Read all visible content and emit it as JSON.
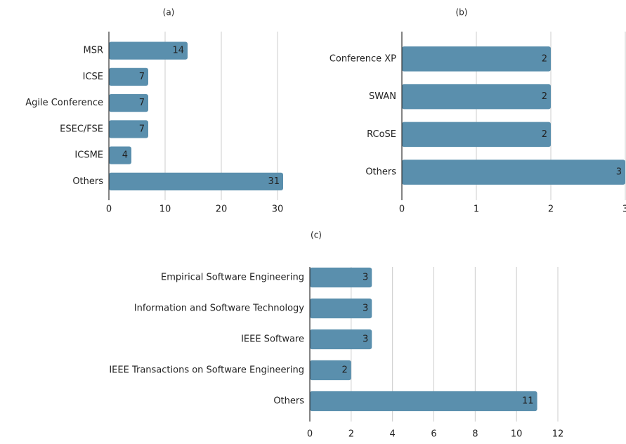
{
  "chart_data": [
    {
      "type": "barh",
      "title": "(a)",
      "categories": [
        "MSR",
        "ICSE",
        "Agile Conference",
        "ESEC/FSE",
        "ICSME",
        "Others"
      ],
      "values": [
        14,
        7,
        7,
        7,
        4,
        31
      ],
      "color": "#5a8fad",
      "xlim": [
        0,
        31
      ],
      "xticks": [
        0,
        10,
        20,
        30
      ],
      "grid": true
    },
    {
      "type": "barh",
      "title": "(b)",
      "categories": [
        "Conference XP",
        "SWAN",
        "RCoSE",
        "Others"
      ],
      "values": [
        2,
        2,
        2,
        3
      ],
      "color": "#5a8fad",
      "xlim": [
        0,
        3
      ],
      "xticks": [
        0,
        1,
        2,
        3
      ],
      "grid": true
    },
    {
      "type": "barh",
      "title": "(c)",
      "categories": [
        "Empirical Software Engineering",
        "Information and Software Technology",
        "IEEE Software",
        "IEEE Transactions on Software Engineering",
        "Others"
      ],
      "values": [
        3,
        3,
        3,
        2,
        11
      ],
      "color": "#5a8fad",
      "xlim": [
        0,
        12
      ],
      "xticks": [
        0,
        2,
        4,
        6,
        8,
        10,
        12
      ],
      "grid": true
    }
  ]
}
